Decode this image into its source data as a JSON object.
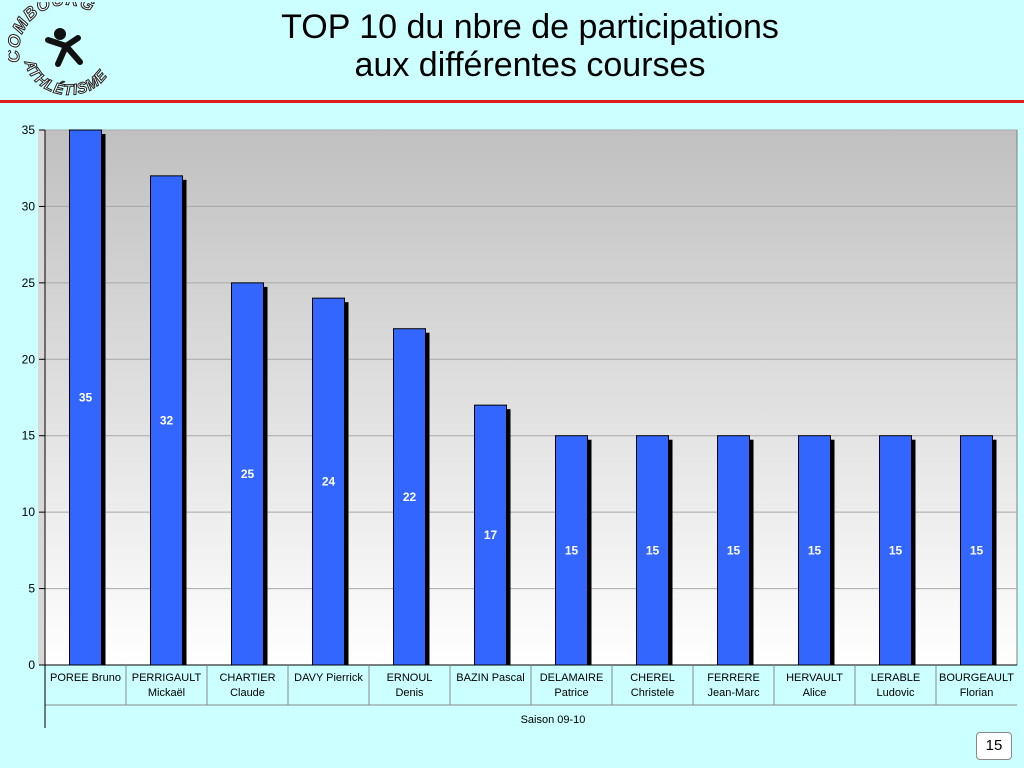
{
  "header": {
    "title_line1": "TOP 10  du nbre de participations",
    "title_line2": "aux différentes courses",
    "logo_text": "COMBOURG ATHLETISME",
    "rule_color": "#e02020"
  },
  "page_number": "15",
  "colors": {
    "background": "#ccffff",
    "bar": "#3366ff",
    "bar_shadow": "#000000"
  },
  "chart_data": {
    "type": "bar",
    "categories": [
      [
        "POREE Bruno"
      ],
      [
        "PERRIGAULT",
        "Mickaël"
      ],
      [
        "CHARTIER",
        "Claude"
      ],
      [
        "DAVY Pierrick"
      ],
      [
        "ERNOUL",
        "Denis"
      ],
      [
        "BAZIN Pascal"
      ],
      [
        "DELAMAIRE",
        "Patrice"
      ],
      [
        "CHEREL",
        "Christele"
      ],
      [
        "FERRERE",
        "Jean-Marc"
      ],
      [
        "HERVAULT",
        "Alice"
      ],
      [
        "LERABLE",
        "Ludovic"
      ],
      [
        "BOURGEAULT",
        "Florian"
      ]
    ],
    "values": [
      35,
      32,
      25,
      24,
      22,
      17,
      15,
      15,
      15,
      15,
      15,
      15
    ],
    "data_labels": [
      "35",
      "32",
      "25",
      "24",
      "22",
      "17",
      "15",
      "15",
      "15",
      "15",
      "15",
      "15"
    ],
    "group_label": "Saison 09-10",
    "ylim": [
      0,
      35
    ],
    "yticks": [
      0,
      5,
      10,
      15,
      20,
      25,
      30,
      35
    ],
    "grid": true,
    "legend": "none",
    "title": "",
    "xlabel": "",
    "ylabel": ""
  }
}
